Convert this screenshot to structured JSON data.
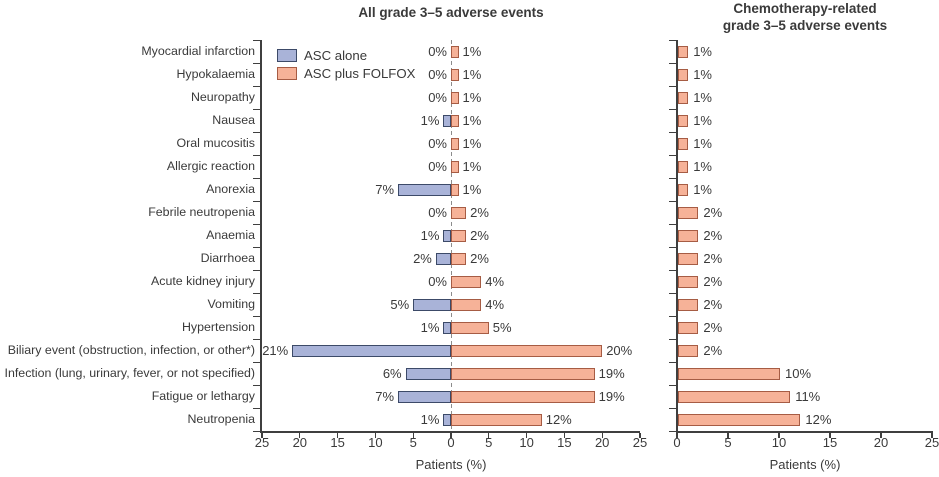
{
  "legend": {
    "items": [
      {
        "label": "ASC alone",
        "color_key": "asc_alone"
      },
      {
        "label": "ASC plus FOLFOX",
        "color_key": "folfox"
      }
    ]
  },
  "colors": {
    "asc_alone_fill": "#a9b3d8",
    "asc_alone_border": "#3c4a68",
    "folfox_fill": "#f6b298",
    "folfox_border": "#a65c44",
    "axis": "#3f3f3f",
    "text": "#3a3a3a",
    "zero_line": "#8c8c8c"
  },
  "chart_data": [
    {
      "type": "bar",
      "orientation": "horizontal-diverging",
      "title": "All grade 3–5 adverse events",
      "xlabel": "Patients (%)",
      "legend_position": "top-left",
      "zero_line": "dashed",
      "xticks": [
        25,
        20,
        15,
        10,
        5,
        0,
        5,
        10,
        15,
        20,
        25
      ],
      "axis_range_each_side": [
        0,
        25
      ],
      "categories": [
        "Myocardial infarction",
        "Hypokalaemia",
        "Neuropathy",
        "Nausea",
        "Oral mucositis",
        "Allergic reaction",
        "Anorexia",
        "Febrile neutropenia",
        "Anaemia",
        "Diarrhoea",
        "Acute kidney injury",
        "Vomiting",
        "Hypertension",
        "Biliary event (obstruction, infection, or other*)",
        "Infection (lung, urinary, fever, or not specified)",
        "Fatigue or lethargy",
        "Neutropenia"
      ],
      "series": [
        {
          "name": "ASC alone",
          "direction": "left",
          "values": [
            0,
            0,
            0,
            1,
            0,
            0,
            7,
            0,
            1,
            2,
            0,
            5,
            1,
            21,
            6,
            7,
            1
          ],
          "unit": "%"
        },
        {
          "name": "ASC plus FOLFOX",
          "direction": "right",
          "values": [
            1,
            1,
            1,
            1,
            1,
            1,
            1,
            2,
            2,
            2,
            4,
            4,
            5,
            20,
            19,
            19,
            12
          ],
          "unit": "%"
        }
      ]
    },
    {
      "type": "bar",
      "orientation": "horizontal",
      "title": "Chemotherapy-related grade 3–5 adverse events",
      "title_lines": [
        "Chemotherapy-related",
        "grade 3–5 adverse events"
      ],
      "xlabel": "Patients (%)",
      "xlim": [
        0,
        25
      ],
      "xticks": [
        0,
        5,
        10,
        15,
        20,
        25
      ],
      "categories": [
        "Myocardial infarction",
        "Hypokalaemia",
        "Neuropathy",
        "Nausea",
        "Oral mucositis",
        "Allergic reaction",
        "Anorexia",
        "Febrile neutropenia",
        "Anaemia",
        "Diarrhoea",
        "Acute kidney injury",
        "Vomiting",
        "Hypertension",
        "Biliary event (obstruction, infection, or other*)",
        "Infection (lung, urinary, fever, or not specified)",
        "Fatigue or lethargy",
        "Neutropenia"
      ],
      "series": [
        {
          "name": "ASC plus FOLFOX",
          "direction": "right",
          "values": [
            1,
            1,
            1,
            1,
            1,
            1,
            1,
            2,
            2,
            2,
            2,
            2,
            2,
            2,
            10,
            11,
            12
          ],
          "unit": "%"
        }
      ]
    }
  ]
}
